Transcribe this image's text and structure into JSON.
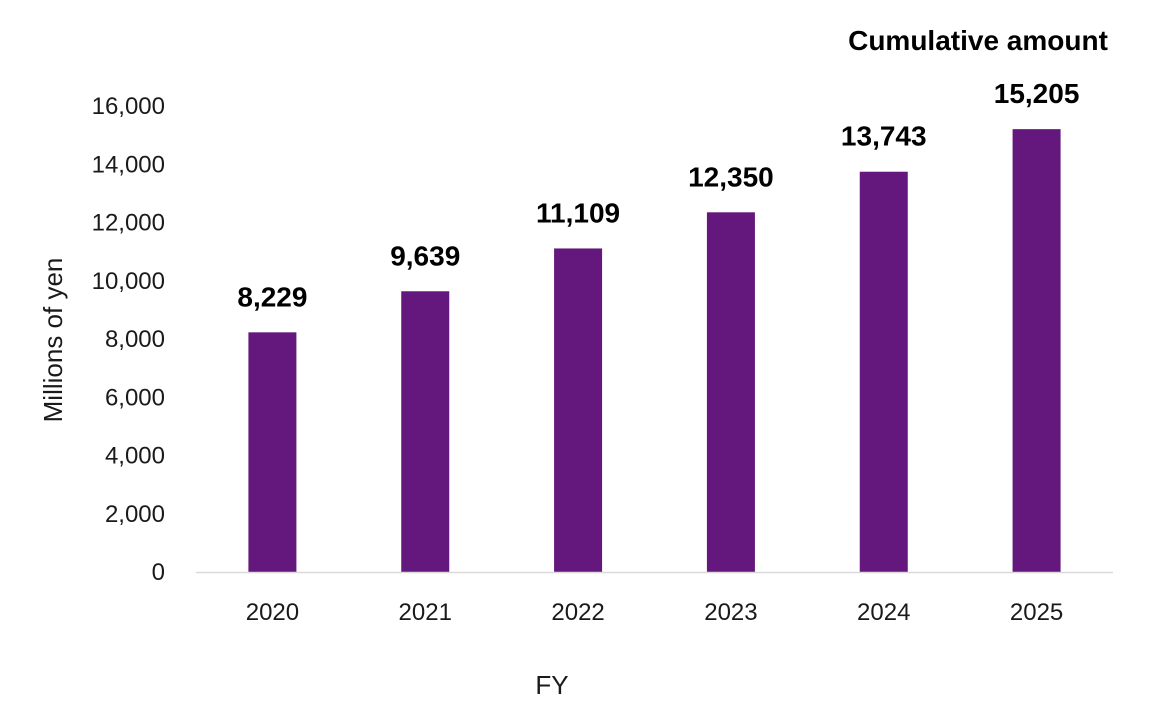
{
  "chart_data": {
    "type": "bar",
    "categories": [
      "2020",
      "2021",
      "2022",
      "2023",
      "2024",
      "2025"
    ],
    "values": [
      8229,
      9639,
      11109,
      12350,
      13743,
      15205
    ],
    "value_labels": [
      "8,229",
      "9,639",
      "11,109",
      "12,350",
      "13,743",
      "15,205"
    ],
    "annotation": "Cumulative amount",
    "xlabel": "FY",
    "ylabel": "Millions of yen",
    "ylim": [
      0,
      16000
    ],
    "yticks": [
      0,
      2000,
      4000,
      6000,
      8000,
      10000,
      12000,
      14000,
      16000
    ],
    "ytick_labels": [
      "0",
      "2,000",
      "4,000",
      "6,000",
      "8,000",
      "10,000",
      "12,000",
      "14,000",
      "16,000"
    ],
    "grid": false,
    "bar_color": "#64177c",
    "axis_color": "#d9d9d9"
  }
}
